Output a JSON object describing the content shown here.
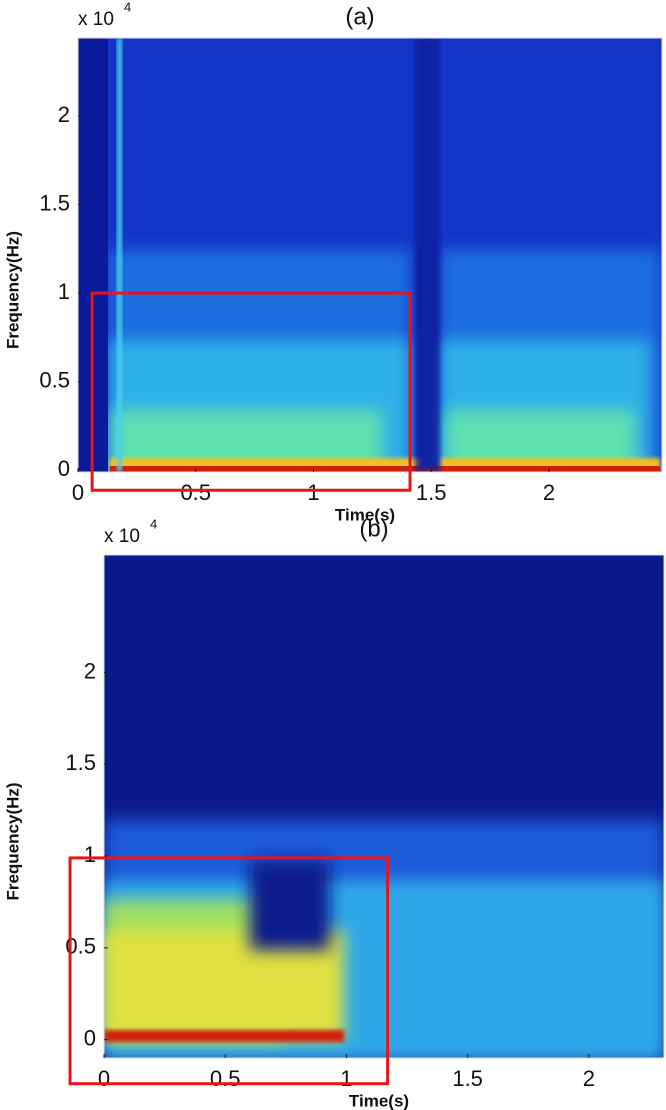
{
  "chart_data": [
    {
      "type": "spectrogram",
      "title": "(a)",
      "xlabel": "Time(s)",
      "ylabel": "Frequency(Hz)",
      "y_multiplier": {
        "base": "x 10",
        "exponent": "4"
      },
      "xlim": [
        0,
        2.48
      ],
      "ylim": [
        -100,
        24400
      ],
      "xticks": [
        0,
        0.5,
        1,
        1.5,
        2
      ],
      "yticks": [
        0,
        {
          "value": 5000,
          "label": "0.5"
        },
        {
          "value": 10000,
          "label": "1"
        },
        {
          "value": 15000,
          "label": "1.5"
        },
        {
          "value": 20000,
          "label": "2"
        }
      ],
      "highlight": {
        "color": "#e8141c",
        "x": [
          0.06,
          1.41
        ],
        "y": [
          -1130,
          10000
        ]
      }
    },
    {
      "type": "spectrogram",
      "title": "(b)",
      "xlabel": "Time(s)",
      "ylabel": "Frequency(Hz)",
      "y_multiplier": {
        "base": "x 10",
        "exponent": "4"
      },
      "xlim": [
        0,
        2.31
      ],
      "ylim": [
        -1000,
        26400
      ],
      "xticks": [
        0,
        0.5,
        1,
        1.5,
        2
      ],
      "yticks": [
        0,
        {
          "value": 5000,
          "label": "0.5"
        },
        {
          "value": 10000,
          "label": "1"
        },
        {
          "value": 15000,
          "label": "1.5"
        },
        {
          "value": 20000,
          "label": "2"
        }
      ],
      "highlight": {
        "color": "#e8141c",
        "x": [
          -0.14,
          1.17
        ],
        "y": [
          -2400,
          9900
        ]
      }
    }
  ]
}
